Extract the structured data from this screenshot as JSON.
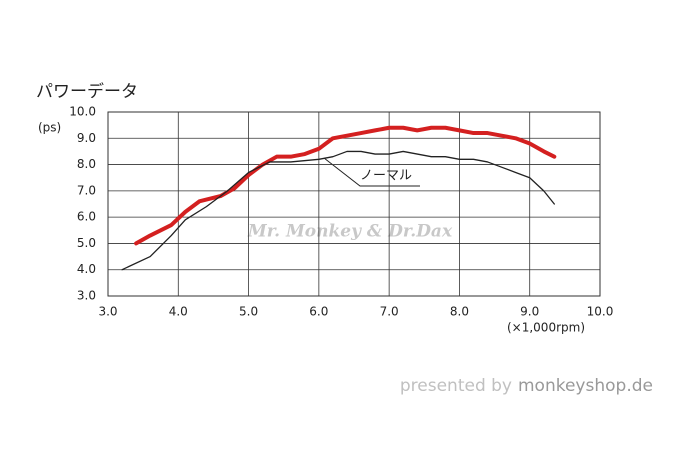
{
  "chart_data": {
    "type": "line",
    "title": "パワーデータ",
    "y_label": "(ps)",
    "x_label": "(×1,000rpm)",
    "annotation": "ノーマル",
    "watermark": "Mr. Monkey & Dr.Dax",
    "footer_prefix": "presented by",
    "footer_brand": "monkeyshop.de",
    "xlim": [
      3,
      10
    ],
    "ylim": [
      3,
      10
    ],
    "grid": true,
    "xticks": [
      {
        "value": 3,
        "label": "3.0"
      },
      {
        "value": 4,
        "label": "4.0"
      },
      {
        "value": 5,
        "label": "5.0"
      },
      {
        "value": 6,
        "label": "6.0"
      },
      {
        "value": 7,
        "label": "7.0"
      },
      {
        "value": 8,
        "label": "8.0"
      },
      {
        "value": 9,
        "label": "9.0"
      },
      {
        "value": 10,
        "label": "10.0"
      }
    ],
    "yticks": [
      {
        "value": 3,
        "label": "3.0"
      },
      {
        "value": 4,
        "label": "4.0"
      },
      {
        "value": 5,
        "label": "5.0"
      },
      {
        "value": 6,
        "label": "6.0"
      },
      {
        "value": 7,
        "label": "7.0"
      },
      {
        "value": 8,
        "label": "8.0"
      },
      {
        "value": 9,
        "label": "9.0"
      },
      {
        "value": 10,
        "label": "10.0"
      }
    ],
    "series": [
      {
        "color": "#d42020",
        "width": 4,
        "x": [
          3.4,
          3.6,
          3.9,
          4.1,
          4.3,
          4.6,
          4.8,
          5.0,
          5.2,
          5.4,
          5.6,
          5.8,
          6.0,
          6.2,
          6.4,
          6.6,
          6.8,
          7.0,
          7.2,
          7.4,
          7.6,
          7.8,
          8.0,
          8.2,
          8.4,
          8.6,
          8.8,
          9.0,
          9.2,
          9.35
        ],
        "values": [
          5.0,
          5.3,
          5.7,
          6.2,
          6.6,
          6.8,
          7.1,
          7.6,
          8.0,
          8.3,
          8.3,
          8.4,
          8.6,
          9.0,
          9.1,
          9.2,
          9.3,
          9.4,
          9.4,
          9.3,
          9.4,
          9.4,
          9.3,
          9.2,
          9.2,
          9.1,
          9.0,
          8.8,
          8.5,
          8.3
        ]
      },
      {
        "color": "#222222",
        "width": 1.3,
        "x": [
          3.2,
          3.6,
          3.9,
          4.1,
          4.4,
          4.7,
          5.0,
          5.3,
          5.6,
          6.0,
          6.2,
          6.4,
          6.6,
          6.8,
          7.0,
          7.2,
          7.4,
          7.6,
          7.8,
          8.0,
          8.2,
          8.4,
          8.6,
          8.8,
          9.0,
          9.2,
          9.35
        ],
        "values": [
          4.0,
          4.5,
          5.3,
          5.9,
          6.4,
          7.0,
          7.7,
          8.1,
          8.1,
          8.2,
          8.3,
          8.5,
          8.5,
          8.4,
          8.4,
          8.5,
          8.4,
          8.3,
          8.3,
          8.2,
          8.2,
          8.1,
          7.9,
          7.7,
          7.5,
          7.0,
          6.5
        ]
      }
    ]
  }
}
